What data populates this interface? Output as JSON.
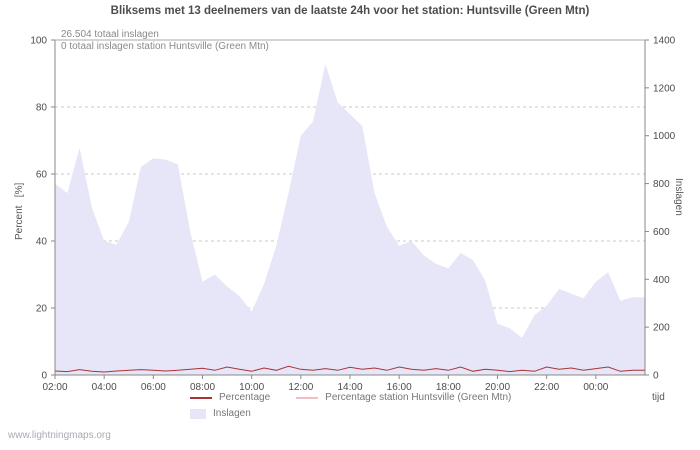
{
  "title": "Bliksems met 13 deelnemers van de laatste 24h voor het station: Huntsville (Green Mtn)",
  "annotations": {
    "total": "26.504 totaal inslagen",
    "station_total": "0 totaal inslagen station Huntsville (Green Mtn)"
  },
  "footer": "www.lightningmaps.org",
  "axes": {
    "left_label": "Percent   [%]",
    "right_label": "Inslagen",
    "x_label": "tijd",
    "left_ticks": [
      0,
      20,
      40,
      60,
      80,
      100
    ],
    "right_ticks": [
      0,
      200,
      400,
      600,
      800,
      1000,
      1200,
      1400
    ],
    "x_ticks": [
      "02:00",
      "04:00",
      "06:00",
      "08:00",
      "10:00",
      "12:00",
      "14:00",
      "16:00",
      "18:00",
      "20:00",
      "22:00",
      "00:00"
    ]
  },
  "legend": [
    {
      "label": "Percentage",
      "type": "line",
      "color": "#aa3333",
      "row": 1
    },
    {
      "label": "Percentage station Huntsville (Green Mtn)",
      "type": "line",
      "color": "#f2bec4",
      "row": 1
    },
    {
      "label": "Inslagen",
      "type": "area",
      "color": "#e6e6f8",
      "row": 2
    }
  ],
  "colors": {
    "area": "#e6e6f8",
    "percentage": "#aa3333",
    "station": "#f2bec4",
    "grid": "#c8c8c8",
    "axis": "#888888",
    "text": "#4d4d4d"
  },
  "chart_data": {
    "type": "area",
    "title": "Bliksems met 13 deelnemers van de laatste 24h voor het station: Huntsville (Green Mtn)",
    "xlabel": "tijd",
    "ylabel_left": "Percent [%]",
    "ylabel_right": "Inslagen",
    "left_ylim": [
      0,
      100
    ],
    "right_ylim": [
      0,
      1400
    ],
    "grid": true,
    "legend_position": "bottom",
    "x": [
      "02:00",
      "02:30",
      "03:00",
      "03:30",
      "04:00",
      "04:30",
      "05:00",
      "05:30",
      "06:00",
      "06:30",
      "07:00",
      "07:30",
      "08:00",
      "08:30",
      "09:00",
      "09:30",
      "10:00",
      "10:30",
      "11:00",
      "11:30",
      "12:00",
      "12:30",
      "13:00",
      "13:30",
      "14:00",
      "14:30",
      "15:00",
      "15:30",
      "16:00",
      "16:30",
      "17:00",
      "17:30",
      "18:00",
      "18:30",
      "19:00",
      "19:30",
      "20:00",
      "20:30",
      "21:00",
      "21:30",
      "22:00",
      "22:30",
      "23:00",
      "23:30",
      "00:00",
      "00:30",
      "01:00",
      "01:30"
    ],
    "series": [
      {
        "name": "Inslagen",
        "type": "area",
        "axis": "right",
        "color": "#e6e6f8",
        "values": [
          800,
          760,
          950,
          700,
          560,
          545,
          640,
          870,
          905,
          900,
          880,
          600,
          390,
          420,
          370,
          330,
          265,
          380,
          540,
          760,
          1000,
          1060,
          1300,
          1140,
          1090,
          1040,
          760,
          620,
          540,
          560,
          500,
          465,
          445,
          510,
          480,
          395,
          215,
          195,
          155,
          250,
          290,
          360,
          340,
          320,
          390,
          430,
          310,
          325
        ]
      },
      {
        "name": "Percentage",
        "type": "line",
        "axis": "left",
        "color": "#aa3333",
        "values": [
          1.2,
          1.0,
          1.6,
          1.1,
          0.9,
          1.2,
          1.4,
          1.6,
          1.4,
          1.2,
          1.4,
          1.7,
          2.0,
          1.4,
          2.4,
          1.7,
          1.1,
          2.1,
          1.4,
          2.6,
          1.7,
          1.4,
          1.9,
          1.4,
          2.3,
          1.7,
          2.1,
          1.4,
          2.4,
          1.7,
          1.4,
          1.9,
          1.4,
          2.4,
          1.1,
          1.7,
          1.4,
          1.0,
          1.4,
          1.1,
          2.4,
          1.7,
          2.1,
          1.4,
          1.9,
          2.4,
          1.1,
          1.4
        ]
      },
      {
        "name": "Percentage station Huntsville (Green Mtn)",
        "type": "line",
        "axis": "left",
        "color": "#f2bec4",
        "values": [
          0,
          0,
          0,
          0,
          0,
          0,
          0,
          0,
          0,
          0,
          0,
          0,
          0,
          0,
          0,
          0,
          0,
          0,
          0,
          0,
          0,
          0,
          0,
          0,
          0,
          0,
          0,
          0,
          0,
          0,
          0,
          0,
          0,
          0,
          0,
          0,
          0,
          0,
          0,
          0,
          0,
          0,
          0,
          0,
          0,
          0,
          0,
          0
        ]
      }
    ]
  }
}
